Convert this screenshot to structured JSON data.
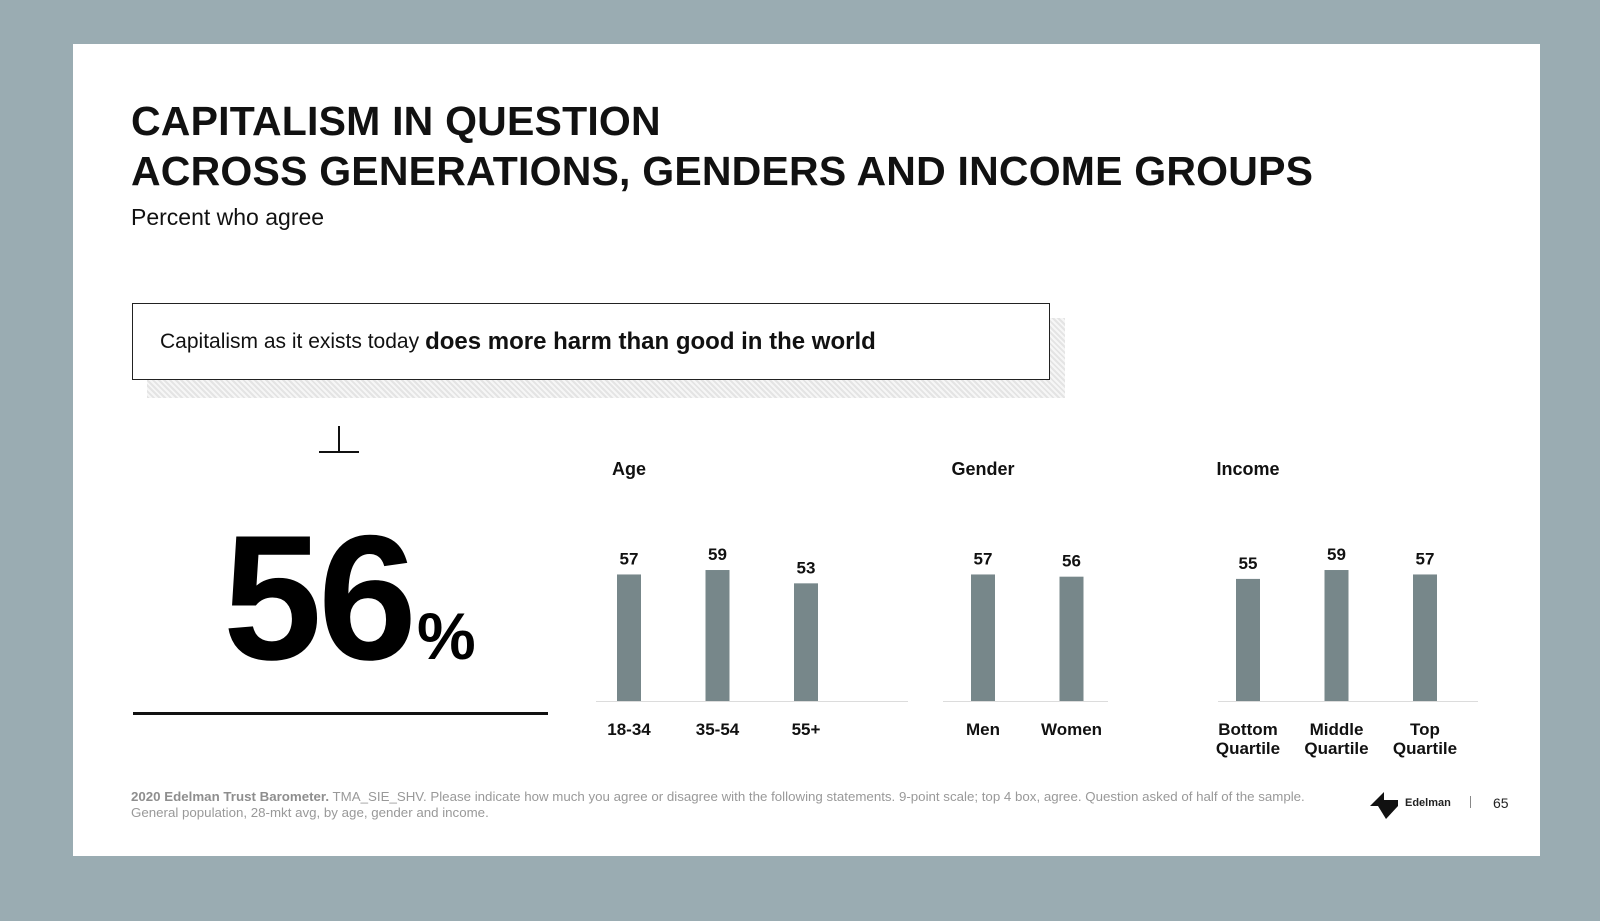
{
  "slide": {
    "title_line1": "CAPITALISM IN QUESTION",
    "title_line2": "ACROSS GENERATIONS, GENDERS AND INCOME GROUPS",
    "subtitle": "Percent who agree",
    "question_regular": "Capitalism as it exists today",
    "question_bold": "does more harm than good in the world",
    "headline_value": "56",
    "headline_unit": "%",
    "footnote_bold": "2020 Edelman Trust Barometer.",
    "footnote_text": "TMA_SIE_SHV. Please indicate how much you agree or disagree with the following statements. 9-point scale; top 4 box, agree. Question asked of half of the sample. General population, 28-mkt avg, by age, gender and income.",
    "logo_text": "Edelman",
    "page_number": "65"
  },
  "icons": {
    "headline_marker": "perpendicular-icon",
    "brand_logo": "edelman-logo-icon"
  },
  "colors": {
    "bar": "#77878a",
    "background": "#9aacb2",
    "text": "#111111"
  },
  "chart_data": {
    "type": "bar",
    "title": "",
    "xlabel": "",
    "ylabel": "",
    "ylim": [
      0,
      100
    ],
    "grid": false,
    "groups": [
      {
        "name": "Age",
        "categories": [
          "18-34",
          "35-54",
          "55+"
        ],
        "values": [
          57,
          59,
          53
        ]
      },
      {
        "name": "Gender",
        "categories": [
          "Men",
          "Women"
        ],
        "values": [
          57,
          56
        ]
      },
      {
        "name": "Income",
        "categories": [
          "Bottom\nQuartile",
          "Middle\nQuartile",
          "Top\nQuartile"
        ],
        "values": [
          55,
          59,
          57
        ]
      }
    ]
  }
}
